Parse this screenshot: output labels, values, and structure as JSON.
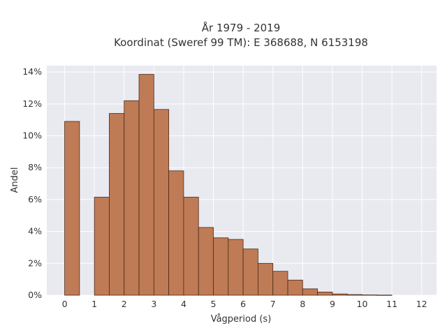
{
  "chart_data": {
    "type": "bar",
    "title_lines": [
      "År 1979 - 2019",
      "Koordinat (Sweref 99 TM): E 368688, N 6153198"
    ],
    "xlabel": "Vågperiod (s)",
    "ylabel": "Andel",
    "x_ticks": [
      "0",
      "1",
      "2",
      "3",
      "4",
      "5",
      "6",
      "7",
      "8",
      "9",
      "10",
      "11",
      "12"
    ],
    "y_ticks": [
      "0%",
      "2%",
      "4%",
      "6%",
      "8%",
      "10%",
      "12%",
      "14%"
    ],
    "xlim": [
      -0.6,
      12.5
    ],
    "ylim": [
      0,
      14.4
    ],
    "bin_width": 0.5,
    "bins": [
      {
        "x": 0.0,
        "value": 10.9
      },
      {
        "x": 1.0,
        "value": 6.15
      },
      {
        "x": 1.5,
        "value": 11.4
      },
      {
        "x": 2.0,
        "value": 12.2
      },
      {
        "x": 2.5,
        "value": 13.85
      },
      {
        "x": 3.0,
        "value": 11.65
      },
      {
        "x": 3.5,
        "value": 7.8
      },
      {
        "x": 4.0,
        "value": 6.15
      },
      {
        "x": 4.5,
        "value": 4.25
      },
      {
        "x": 5.0,
        "value": 3.6
      },
      {
        "x": 5.5,
        "value": 3.5
      },
      {
        "x": 6.0,
        "value": 2.9
      },
      {
        "x": 6.5,
        "value": 2.0
      },
      {
        "x": 7.0,
        "value": 1.5
      },
      {
        "x": 7.5,
        "value": 0.95
      },
      {
        "x": 8.0,
        "value": 0.4
      },
      {
        "x": 8.5,
        "value": 0.2
      },
      {
        "x": 9.0,
        "value": 0.08
      },
      {
        "x": 9.5,
        "value": 0.04
      },
      {
        "x": 10.0,
        "value": 0.02
      },
      {
        "x": 10.5,
        "value": 0.01
      }
    ],
    "colors": {
      "bar_fill": "#bf7b55",
      "bar_stroke": "#4a2a1a",
      "plot_bg": "#e9e9f0",
      "grid": "#ffffff"
    },
    "grid": true
  }
}
